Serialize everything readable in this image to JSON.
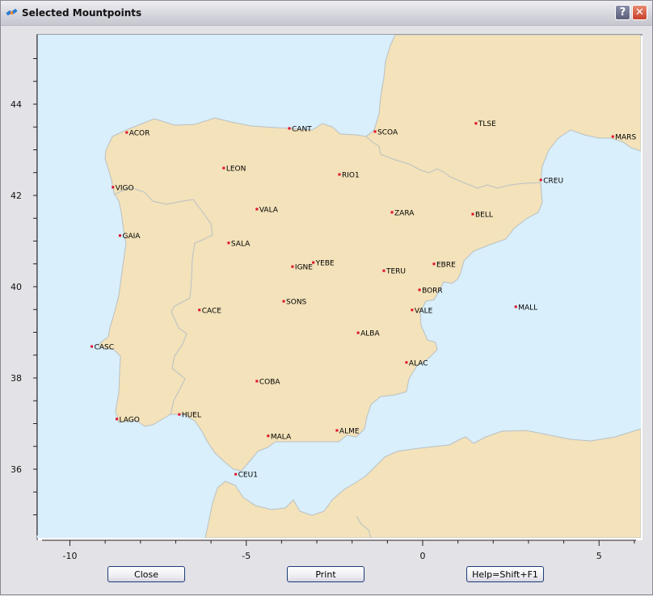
{
  "window": {
    "title": "Selected Mountpoints",
    "help_glyph": "?",
    "close_glyph": "✕"
  },
  "colors": {
    "land": "#f3e2ba",
    "sea": "#d9effb",
    "border": "#b9c0c4",
    "station": "#e0102a"
  },
  "axes": {
    "x_ticks": [
      "-10",
      "-5",
      "0",
      "5"
    ],
    "y_ticks": [
      "36",
      "38",
      "40",
      "42",
      "44"
    ],
    "xlim": [
      -11,
      6
    ],
    "ylim": [
      34.6,
      45.5
    ]
  },
  "stations": [
    {
      "name": "ACOR",
      "lon": -8.39,
      "lat": 43.38
    },
    {
      "name": "CANT",
      "lon": -3.78,
      "lat": 43.47
    },
    {
      "name": "SCOA",
      "lon": -1.35,
      "lat": 43.4
    },
    {
      "name": "TLSE",
      "lon": 1.51,
      "lat": 43.58
    },
    {
      "name": "MARS",
      "lon": 5.39,
      "lat": 43.29
    },
    {
      "name": "VIGO",
      "lon": -8.78,
      "lat": 42.18
    },
    {
      "name": "LEON",
      "lon": -5.64,
      "lat": 42.6
    },
    {
      "name": "RIO1",
      "lon": -2.36,
      "lat": 42.46
    },
    {
      "name": "CREU",
      "lon": 3.35,
      "lat": 42.34
    },
    {
      "name": "VALA",
      "lon": -4.7,
      "lat": 41.7
    },
    {
      "name": "ZARA",
      "lon": -0.87,
      "lat": 41.63
    },
    {
      "name": "BELL",
      "lon": 1.42,
      "lat": 41.59
    },
    {
      "name": "GAIA",
      "lon": -8.58,
      "lat": 41.12
    },
    {
      "name": "SALA",
      "lon": -5.5,
      "lat": 40.96
    },
    {
      "name": "YEBE",
      "lon": -3.1,
      "lat": 40.53
    },
    {
      "name": "IGNE",
      "lon": -3.69,
      "lat": 40.44
    },
    {
      "name": "TERU",
      "lon": -1.1,
      "lat": 40.35
    },
    {
      "name": "EBRE",
      "lon": 0.32,
      "lat": 40.5
    },
    {
      "name": "BORR",
      "lon": -0.09,
      "lat": 39.93
    },
    {
      "name": "SONS",
      "lon": -3.94,
      "lat": 39.68
    },
    {
      "name": "CACE",
      "lon": -6.33,
      "lat": 39.49
    },
    {
      "name": "VALE",
      "lon": -0.3,
      "lat": 39.49
    },
    {
      "name": "MALL",
      "lon": 2.64,
      "lat": 39.56
    },
    {
      "name": "ALBA",
      "lon": -1.83,
      "lat": 38.99
    },
    {
      "name": "CASC",
      "lon": -9.38,
      "lat": 38.69
    },
    {
      "name": "ALAC",
      "lon": -0.46,
      "lat": 38.34
    },
    {
      "name": "COBA",
      "lon": -4.7,
      "lat": 37.93
    },
    {
      "name": "HUEL",
      "lon": -6.9,
      "lat": 37.2
    },
    {
      "name": "LAGO",
      "lon": -8.67,
      "lat": 37.1
    },
    {
      "name": "ALME",
      "lon": -2.43,
      "lat": 36.85
    },
    {
      "name": "MALA",
      "lon": -4.38,
      "lat": 36.73
    },
    {
      "name": "CEU1",
      "lon": -5.3,
      "lat": 35.89
    }
  ],
  "buttons": {
    "close": "Close",
    "print": "Print",
    "help": "Help=Shift+F1"
  }
}
